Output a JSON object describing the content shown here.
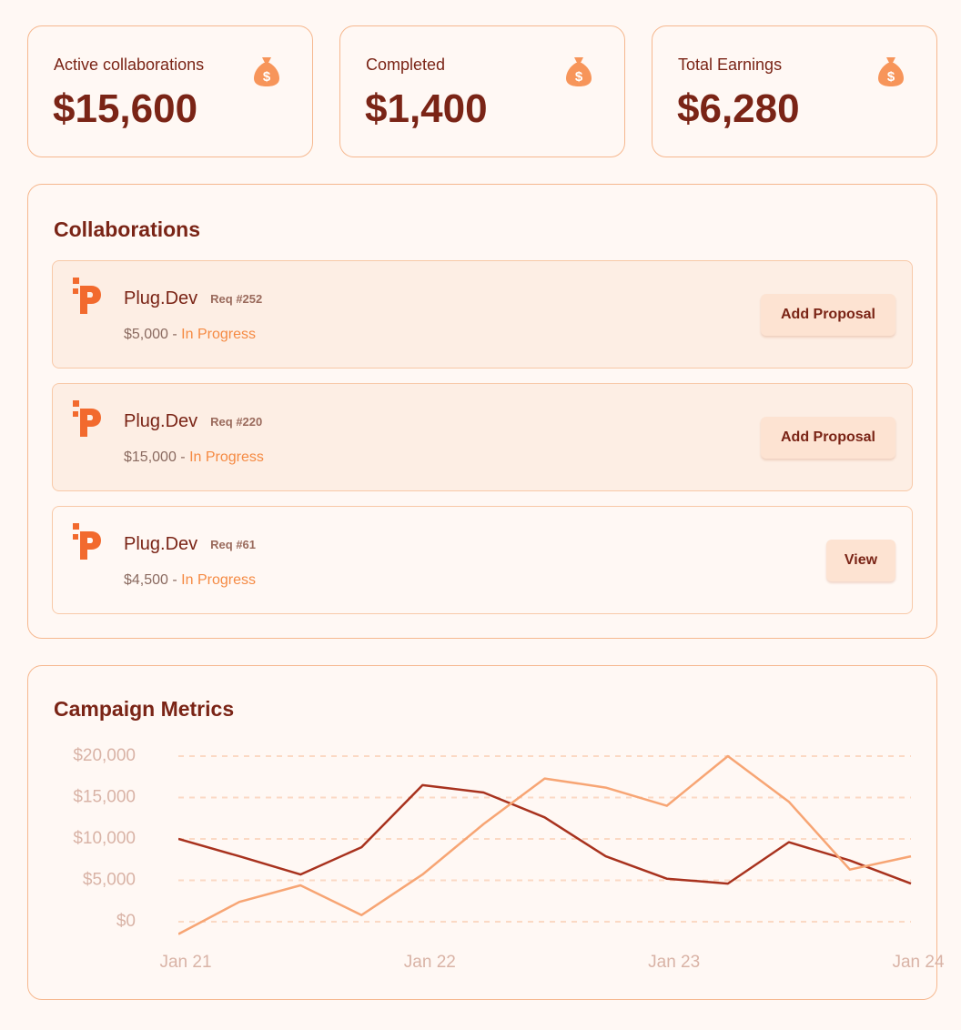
{
  "stats": [
    {
      "label": "Active collaborations",
      "value": "$15,600"
    },
    {
      "label": "Completed",
      "value": "$1,400"
    },
    {
      "label": "Total Earnings",
      "value": "$6,280"
    }
  ],
  "collaborations": {
    "title": "Collaborations",
    "items": [
      {
        "name": "Plug.Dev",
        "req": "Req #252",
        "amount": "$5,000 - ",
        "status": "In Progress",
        "action": "Add Proposal"
      },
      {
        "name": "Plug.Dev",
        "req": "Req #220",
        "amount": "$15,000 - ",
        "status": "In Progress",
        "action": "Add Proposal"
      },
      {
        "name": "Plug.Dev",
        "req": "Req #61",
        "amount": "$4,500 - ",
        "status": "In Progress",
        "action": "View"
      }
    ]
  },
  "chart_data": {
    "type": "line",
    "title": "Campaign Metrics",
    "categories": [
      "Jan 21",
      null,
      null,
      null,
      "Jan 22",
      null,
      null,
      null,
      "Jan 23",
      null,
      null,
      null,
      "Jan 24"
    ],
    "series": [
      {
        "color": "#a8321e",
        "values": [
          10000,
          7900,
          5700,
          9000,
          16500,
          15600,
          12600,
          7900,
          5200,
          4600,
          9600,
          7400,
          4600
        ]
      },
      {
        "color": "#f7a574",
        "values": [
          -1500,
          2400,
          4400,
          800,
          5700,
          11800,
          17300,
          16200,
          14000,
          20000,
          14500,
          6300,
          7900
        ]
      }
    ],
    "ylim": [
      -2500,
      22000
    ],
    "yticks": [
      {
        "value": 0,
        "label": "$0"
      },
      {
        "value": 5000,
        "label": "$5,000"
      },
      {
        "value": 10000,
        "label": "$10,000"
      },
      {
        "value": 15000,
        "label": "$15,000"
      },
      {
        "value": 20000,
        "label": "$20,000"
      }
    ],
    "grid": true
  }
}
